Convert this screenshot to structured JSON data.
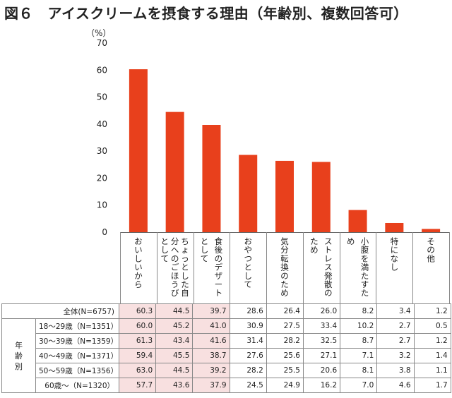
{
  "figure": {
    "title": "図６　アイスクリームを摂食する理由（年齢別、複数回答可）",
    "unit_label": "（%）",
    "highlight_color": "#f8e0e0",
    "bar_color": "#e8401c"
  },
  "chart_data": {
    "type": "bar",
    "title": "図６　アイスクリームを摂食する理由（年齢別、複数回答可）",
    "ylabel": "（%）",
    "ylim": [
      0,
      70
    ],
    "yticks": [
      0,
      10,
      20,
      30,
      40,
      50,
      60,
      70
    ],
    "grid": false,
    "categories": [
      "おいしいから",
      "ちょっとした自分へのごほうびとして",
      "食後のデザートとして",
      "おやつとして",
      "気分転換のため",
      "ストレス発散のため",
      "小腹を満たすため",
      "特になし",
      "その他"
    ],
    "category_label_columns": [
      [
        "おいしいから"
      ],
      [
        "ちょっとした自",
        "分へのごほうび",
        "として"
      ],
      [
        "食後のデザート",
        "として"
      ],
      [
        "おやつとして"
      ],
      [
        "気分転換のため"
      ],
      [
        "ストレス発散の",
        "ため"
      ],
      [
        "小腹を満たすた",
        "め"
      ],
      [
        "特になし"
      ],
      [
        "その他"
      ]
    ],
    "series": [
      {
        "values": [
          60.3,
          44.5,
          39.7,
          28.6,
          26.4,
          26.0,
          8.2,
          3.4,
          1.2
        ]
      }
    ]
  },
  "table": {
    "group_label": [
      "年",
      "齢",
      "別"
    ],
    "rows": [
      {
        "label": "全体(N=6757)",
        "values": [
          "60.3",
          "44.5",
          "39.7",
          "28.6",
          "26.4",
          "26.0",
          "8.2",
          "3.4",
          "1.2"
        ]
      },
      {
        "label": "18～29歳（N=1351）",
        "values": [
          "60.0",
          "45.2",
          "41.0",
          "30.9",
          "27.5",
          "33.4",
          "10.2",
          "2.7",
          "0.5"
        ]
      },
      {
        "label": "30～39歳（N=1359）",
        "values": [
          "61.3",
          "43.4",
          "41.6",
          "31.4",
          "28.2",
          "32.5",
          "8.7",
          "2.7",
          "1.2"
        ]
      },
      {
        "label": "40～49歳（N=1371）",
        "values": [
          "59.4",
          "45.5",
          "38.7",
          "27.6",
          "25.6",
          "27.1",
          "7.1",
          "3.2",
          "1.4"
        ]
      },
      {
        "label": "50～59歳（N=1356）",
        "values": [
          "63.0",
          "44.5",
          "39.2",
          "28.2",
          "25.5",
          "20.6",
          "8.1",
          "3.8",
          "1.1"
        ]
      },
      {
        "label": "60歳～（N=1320）",
        "values": [
          "57.7",
          "43.6",
          "37.9",
          "24.5",
          "24.9",
          "16.2",
          "7.0",
          "4.6",
          "1.7"
        ]
      }
    ]
  }
}
